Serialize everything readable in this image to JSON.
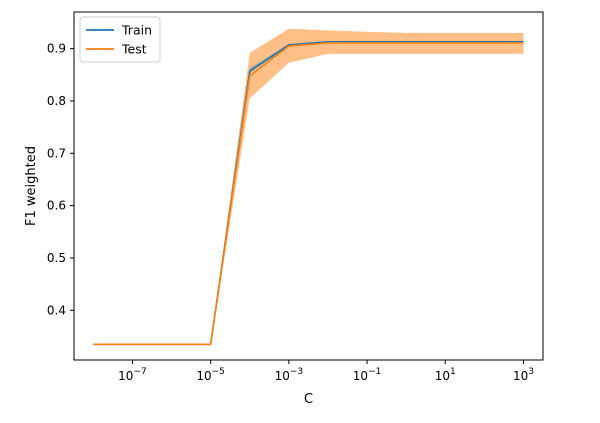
{
  "chart_data": {
    "type": "line",
    "title": "",
    "xlabel": "C",
    "ylabel": "F1 weighted",
    "x_scale": "log",
    "x_exponents": [
      -8,
      -7,
      -6,
      -5,
      -4,
      -3,
      -2,
      -1,
      0,
      1,
      2,
      3
    ],
    "x": [
      1e-08,
      1e-07,
      1e-06,
      1e-05,
      0.0001,
      0.001,
      0.01,
      0.1,
      1,
      10,
      100,
      1000
    ],
    "xlim": [
      3.2e-09,
      3162
    ],
    "ylim": [
      0.305,
      0.97
    ],
    "x_ticks": [
      {
        "base": "10",
        "exp": "−7",
        "value": 1e-07
      },
      {
        "base": "10",
        "exp": "−5",
        "value": 1e-05
      },
      {
        "base": "10",
        "exp": "−3",
        "value": 0.001
      },
      {
        "base": "10",
        "exp": "−1",
        "value": 0.1
      },
      {
        "base": "10",
        "exp": "1",
        "value": 10
      },
      {
        "base": "10",
        "exp": "3",
        "value": 1000
      }
    ],
    "y_ticks": [
      {
        "label": "0.4",
        "value": 0.4
      },
      {
        "label": "0.5",
        "value": 0.5
      },
      {
        "label": "0.6",
        "value": 0.6
      },
      {
        "label": "0.7",
        "value": 0.7
      },
      {
        "label": "0.8",
        "value": 0.8
      },
      {
        "label": "0.9",
        "value": 0.9
      }
    ],
    "grid": false,
    "legend_position": "top-left",
    "series": [
      {
        "name": "Train",
        "color": "#1f77b4",
        "values": [
          0.335,
          0.335,
          0.335,
          0.335,
          0.857,
          0.907,
          0.913,
          0.913,
          0.913,
          0.913,
          0.913,
          0.913
        ],
        "band_low": [
          0.335,
          0.335,
          0.335,
          0.335,
          0.853,
          0.905,
          0.912,
          0.912,
          0.912,
          0.912,
          0.912,
          0.912
        ],
        "band_high": [
          0.335,
          0.335,
          0.335,
          0.335,
          0.863,
          0.909,
          0.914,
          0.914,
          0.914,
          0.914,
          0.914,
          0.914
        ]
      },
      {
        "name": "Test",
        "color": "#ff7f0e",
        "values": [
          0.335,
          0.335,
          0.335,
          0.335,
          0.848,
          0.905,
          0.911,
          0.911,
          0.911,
          0.911,
          0.911,
          0.911
        ],
        "band_low": [
          0.335,
          0.335,
          0.335,
          0.335,
          0.805,
          0.873,
          0.89,
          0.89,
          0.89,
          0.89,
          0.89,
          0.89
        ],
        "band_high": [
          0.335,
          0.335,
          0.335,
          0.335,
          0.892,
          0.938,
          0.935,
          0.932,
          0.93,
          0.93,
          0.93,
          0.93
        ]
      }
    ]
  }
}
